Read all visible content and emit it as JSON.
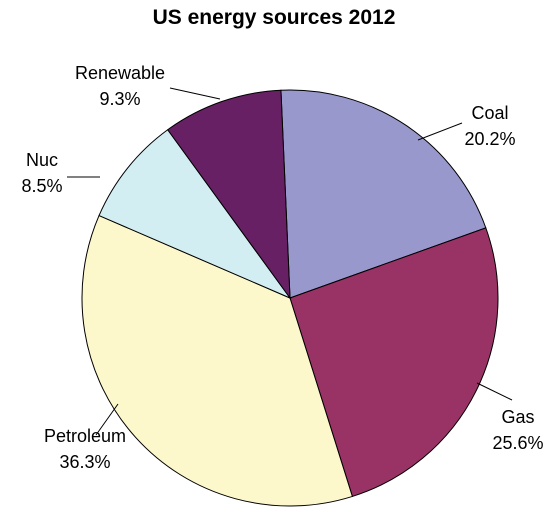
{
  "chart_data": {
    "type": "pie",
    "title": "US energy sources 2012",
    "slices": [
      {
        "name": "Coal",
        "label": "20.2%",
        "value": 20.2,
        "color": "#9898cc"
      },
      {
        "name": "Gas",
        "label": "25.6%",
        "value": 25.6,
        "color": "#993366"
      },
      {
        "name": "Petroleum",
        "label": "36.3%",
        "value": 36.3,
        "color": "#fdf8cc"
      },
      {
        "name": "Nuc",
        "label": "8.5%",
        "value": 8.5,
        "color": "#d2eef2"
      },
      {
        "name": "Renewable",
        "label": "9.3%",
        "value": 9.3,
        "color": "#672063"
      }
    ]
  }
}
